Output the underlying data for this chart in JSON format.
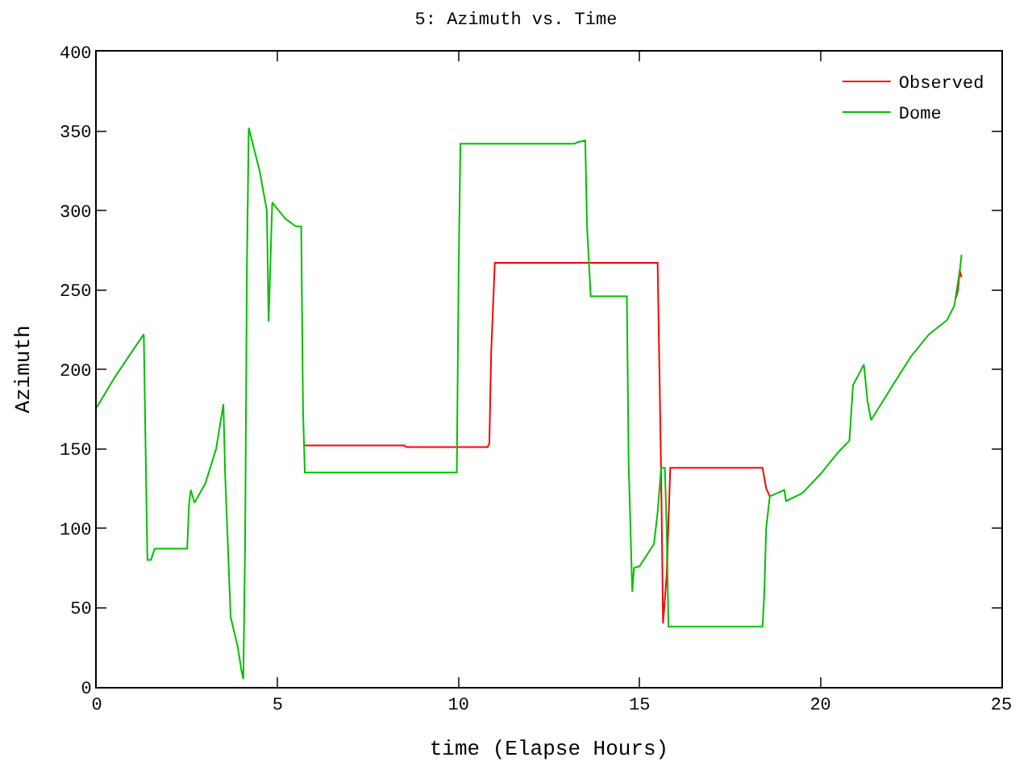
{
  "chart_data": {
    "type": "line",
    "title": "5: Azimuth vs. Time",
    "xlabel": "time (Elapse Hours)",
    "ylabel": "Azimuth",
    "xlim": [
      0,
      25
    ],
    "ylim": [
      0,
      400
    ],
    "xticks": [
      0,
      5,
      10,
      15,
      20,
      25
    ],
    "yticks": [
      0,
      50,
      100,
      150,
      200,
      250,
      300,
      350,
      400
    ],
    "legend": "top right",
    "line_style": "solid",
    "marker": "none",
    "series": [
      {
        "name": "Observed",
        "color": "#ff0000",
        "x": [
          5.75,
          8.5,
          8.55,
          10.8,
          10.85,
          10.9,
          11.0,
          15.5,
          15.55,
          15.6,
          15.65,
          15.75,
          15.85,
          18.4,
          18.5,
          18.6,
          null,
          23.75,
          23.8,
          23.85,
          23.9
        ],
        "values": [
          152,
          152,
          151,
          151,
          153,
          210,
          267,
          267,
          200,
          130,
          40,
          70,
          138,
          138,
          125,
          120,
          null,
          245,
          250,
          262,
          258
        ]
      },
      {
        "name": "Dome",
        "color": "#00c000",
        "x": [
          0,
          0.5,
          1,
          1.3,
          1.35,
          1.4,
          1.5,
          1.6,
          2.5,
          2.55,
          2.6,
          2.7,
          3,
          3.3,
          3.5,
          3.55,
          3.7,
          3.9,
          4.0,
          4.05,
          4.1,
          4.15,
          4.2,
          4.5,
          4.7,
          4.75,
          4.85,
          5.2,
          5.5,
          5.65,
          5.7,
          5.75,
          9.95,
          10.0,
          10.05,
          13.2,
          13.3,
          13.5,
          13.55,
          13.65,
          14.65,
          14.7,
          14.8,
          14.85,
          15.0,
          15.4,
          15.5,
          15.6,
          15.7,
          15.75,
          15.8,
          18.4,
          18.45,
          18.5,
          18.6,
          18.8,
          19,
          19.05,
          19.5,
          20,
          20.5,
          20.8,
          20.9,
          21.2,
          21.3,
          21.4,
          22,
          22.5,
          23,
          23.5,
          23.7,
          23.85,
          23.9
        ],
        "values": [
          176,
          195,
          212,
          222,
          150,
          80,
          80,
          87,
          87,
          115,
          124,
          116,
          128,
          150,
          178,
          133,
          44,
          25,
          10,
          5,
          90,
          265,
          352,
          325,
          300,
          230,
          305,
          295,
          290,
          290,
          175,
          135,
          135,
          260,
          342,
          342,
          343,
          344,
          290,
          246,
          246,
          140,
          60,
          75,
          76,
          90,
          110,
          138,
          138,
          100,
          38,
          38,
          60,
          100,
          120,
          122,
          124,
          117,
          122,
          134,
          148,
          155,
          190,
          203,
          180,
          168,
          190,
          208,
          222,
          231,
          240,
          262,
          272
        ]
      }
    ]
  }
}
